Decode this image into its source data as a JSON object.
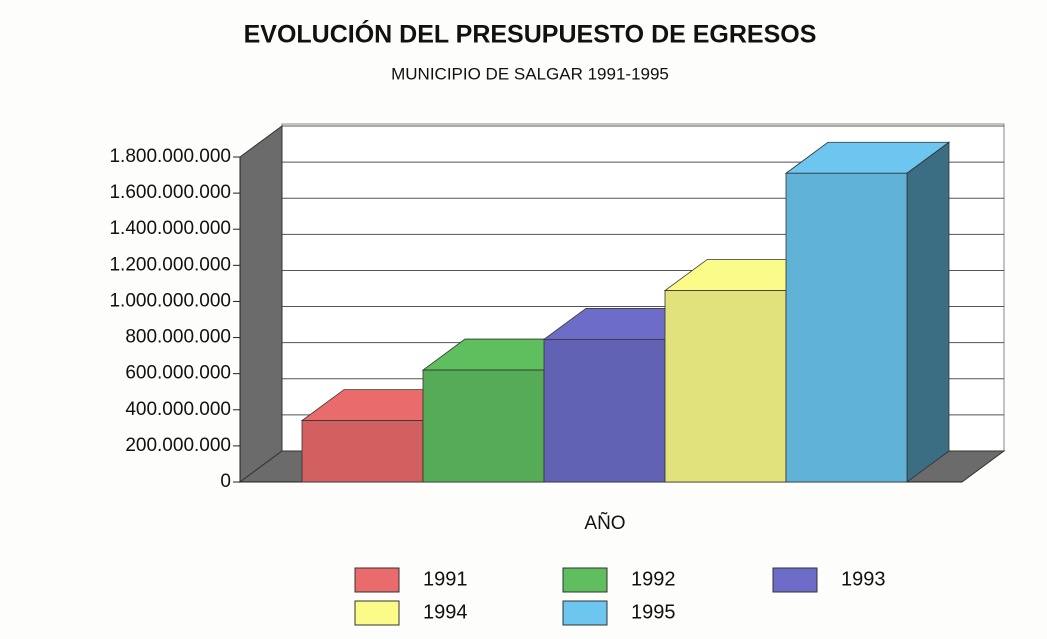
{
  "chart_data": {
    "type": "bar3d",
    "title": "EVOLUCIÓN DEL PRESUPUESTO DE EGRESOS",
    "subtitle": "MUNICIPIO DE SALGAR 1991-1995",
    "x_label": "AÑO",
    "categories": [
      null
    ],
    "series": [
      {
        "name": "1991",
        "color": "#ea6b6b",
        "values": [
          340000000
        ]
      },
      {
        "name": "1992",
        "color": "#5fbf5f",
        "values": [
          620000000
        ]
      },
      {
        "name": "1993",
        "color": "#6d6dc9",
        "values": [
          790000000
        ]
      },
      {
        "name": "1994",
        "color": "#fbfb8a",
        "values": [
          1060000000
        ]
      },
      {
        "name": "1995",
        "color": "#6cc6ef",
        "values": [
          1710000000
        ]
      }
    ],
    "ylim": [
      0,
      1800000000
    ],
    "yticks": [
      0,
      {
        "value": 200000000,
        "label": "200.000.000"
      },
      {
        "value": 400000000,
        "label": "400.000.000"
      },
      {
        "value": 600000000,
        "label": "600.000.000"
      },
      {
        "value": 800000000,
        "label": "800.000.000"
      },
      {
        "value": 1000000000,
        "label": "1.000.000.000"
      },
      {
        "value": 1200000000,
        "label": "1.200.000.000"
      },
      {
        "value": 1400000000,
        "label": "1.400.000.000"
      },
      {
        "value": 1600000000,
        "label": "1.600.000.000"
      },
      {
        "value": 1800000000,
        "label": "1.800.000.000"
      }
    ],
    "grid": true,
    "legend": "bottom"
  }
}
